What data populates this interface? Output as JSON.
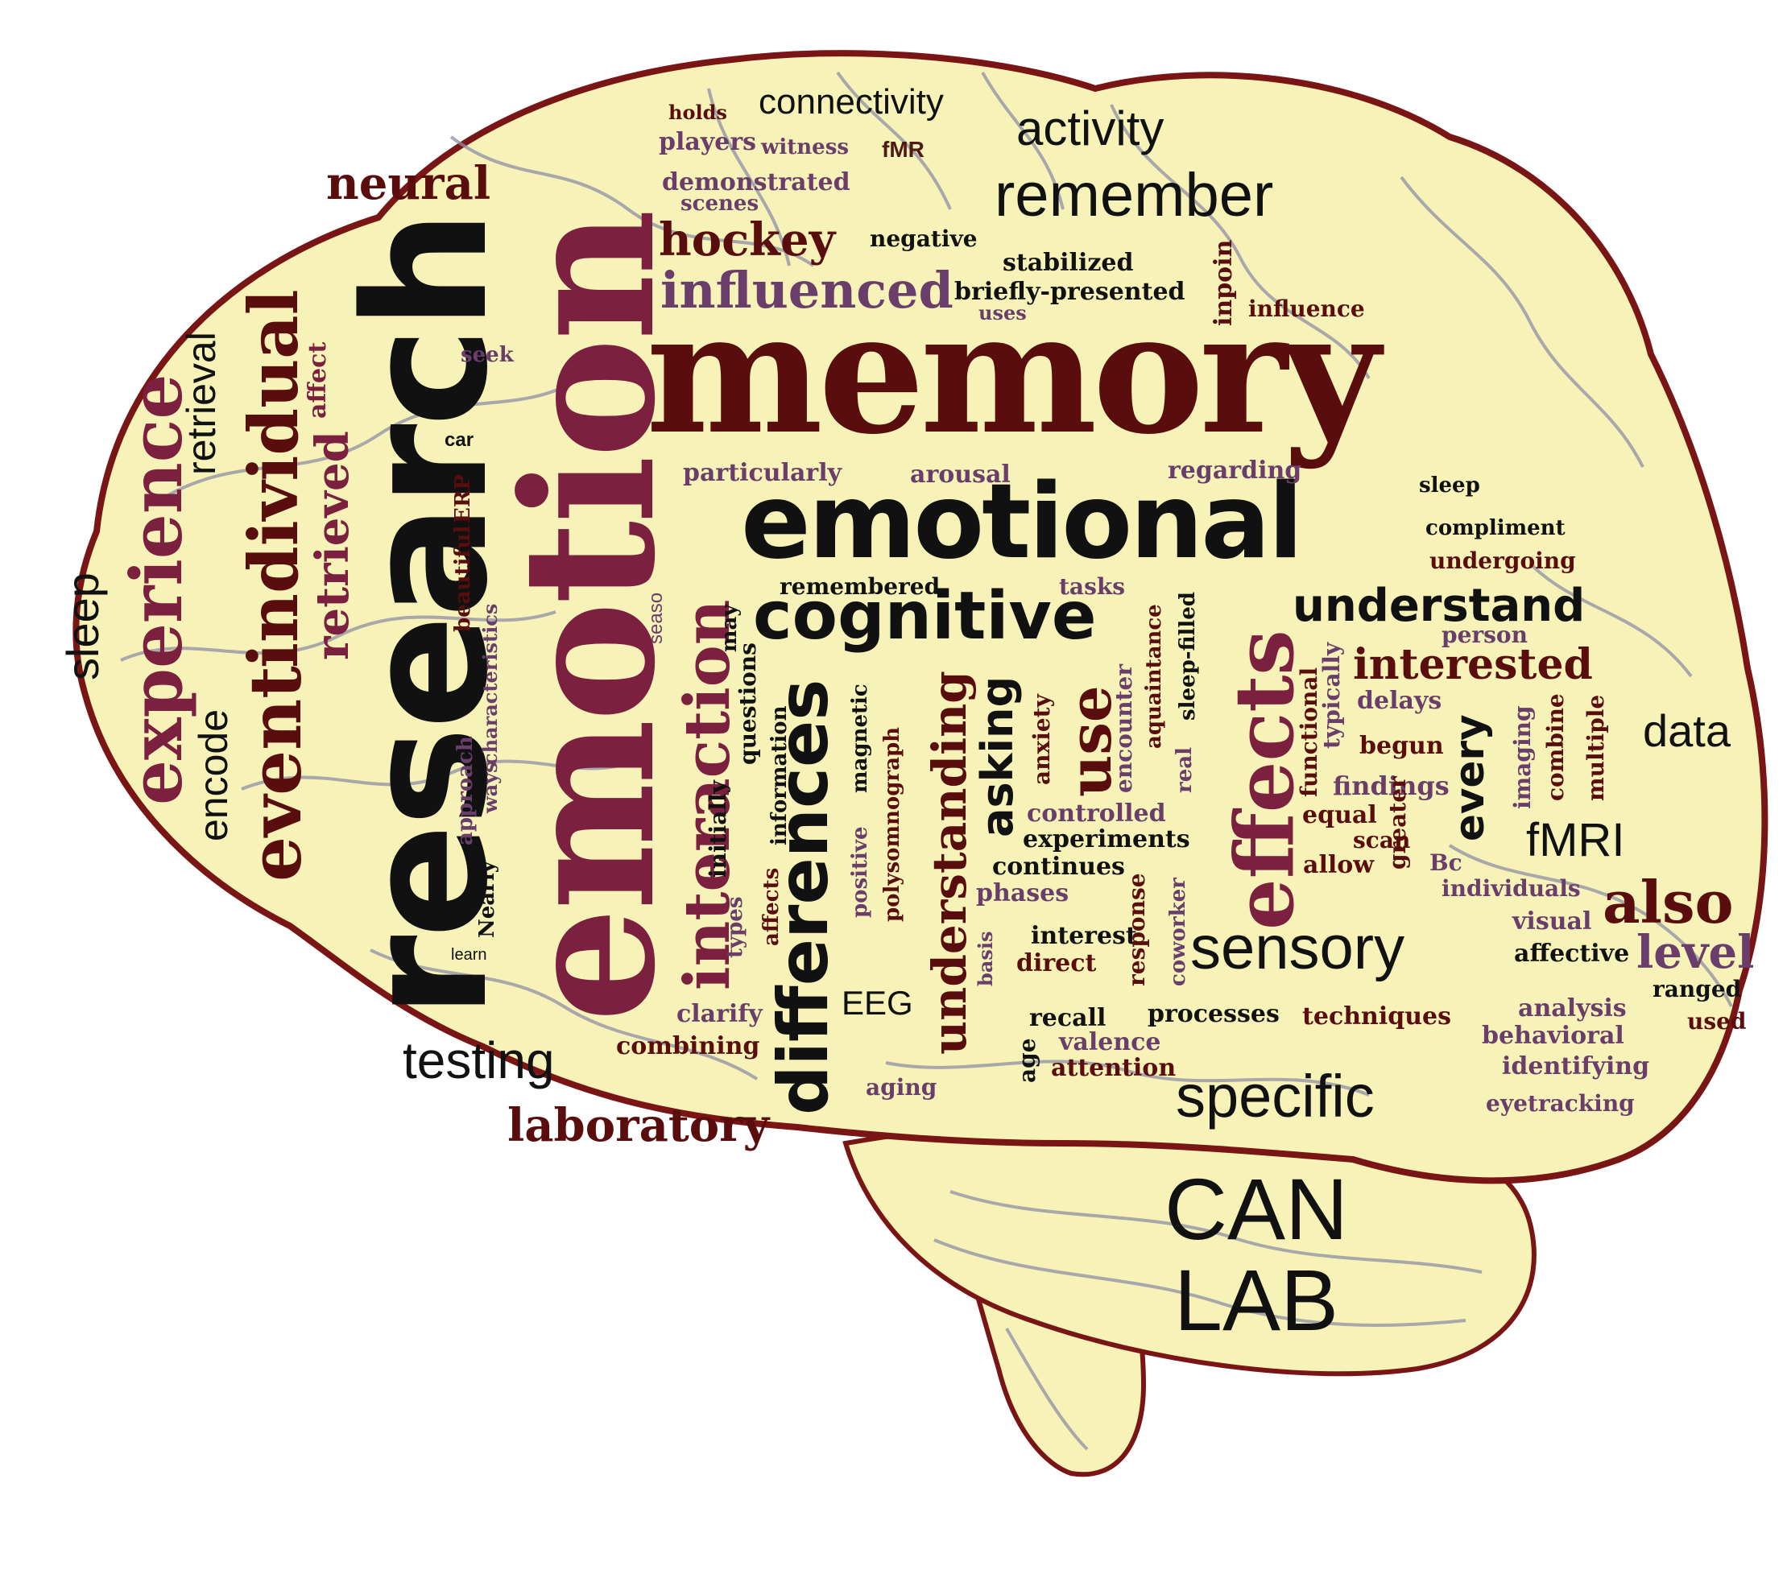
{
  "colors": {
    "background": "#ffffff",
    "brain_fill": "#f6f2b8",
    "brain_outline": "#7a1515",
    "vein_lines": "#8f8ea6",
    "text_dark_red": "#5a0d0d",
    "text_rose": "#7c2040",
    "text_plum": "#6a3e6a",
    "text_black": "#111111"
  },
  "logo": {
    "line1": "CAN",
    "line2": "LAB"
  },
  "words": {
    "memory": "memory",
    "emotion": "emotion",
    "research": "research",
    "emotional": "emotional",
    "cognitive": "cognitive",
    "differences": "differences",
    "effects": "effects",
    "interaction": "interaction",
    "understanding": "understanding",
    "experience": "experience",
    "event": "event",
    "individual": "individual",
    "remember": "remember",
    "activity": "activity",
    "connectivity": "connectivity",
    "neural": "neural",
    "hockey": "hockey",
    "influenced": "influenced",
    "understand": "understand",
    "interested": "interested",
    "sensory": "sensory",
    "specific": "specific",
    "laboratory": "laboratory",
    "testing": "testing",
    "data": "data",
    "fmri": "fMRI",
    "also": "also",
    "level": "level",
    "sleep": "sleep",
    "retrieval": "retrieval",
    "encode": "encode",
    "retrieved": "retrieved",
    "affect": "affect",
    "use": "use",
    "asking": "asking",
    "every": "every",
    "eeg": "EEG",
    "holds": "holds",
    "players": "players",
    "witness": "witness",
    "fmr": "fMR",
    "demonstrated": "demonstrated",
    "scenes": "scenes",
    "negative": "negative",
    "stabilized": "stabilized",
    "briefly_presented": "briefly-presented",
    "uses": "uses",
    "inpoin": "inpoin",
    "influence": "influence",
    "seek": "seek",
    "car": "car",
    "particularly": "particularly",
    "arousal": "arousal",
    "regarding": "regarding",
    "sleep_small": "sleep",
    "compliment": "compliment",
    "undergoing": "undergoing",
    "remembered": "remembered",
    "tasks": "tasks",
    "person": "person",
    "delays": "delays",
    "begun": "begun",
    "findings": "findings",
    "equal": "equal",
    "scan": "scan",
    "allow": "allow",
    "bc": "Bc",
    "individuals": "individuals",
    "visual": "visual",
    "affective": "affective",
    "ranged": "ranged",
    "analysis": "analysis",
    "used": "used",
    "behavioral": "behavioral",
    "identifying": "identifying",
    "eyetracking": "eyetracking",
    "controlled": "controlled",
    "experiments": "experiments",
    "continues": "continues",
    "phases": "phases",
    "interest": "interest",
    "direct": "direct",
    "recall": "recall",
    "processes": "processes",
    "techniques": "techniques",
    "valence": "valence",
    "attention": "attention",
    "age": "age",
    "aging": "aging",
    "clarify": "clarify",
    "combining": "combining",
    "learn": "learn",
    "nearly": "Nearly",
    "approach": "approach",
    "ways": "ways",
    "characteristics": "characteristics",
    "beautiful": "beautiful",
    "erp": "ERP",
    "seaso": "seaso",
    "may": "may",
    "initially": "initially",
    "questions": "questions",
    "information": "information",
    "affects": "affects",
    "types": "types",
    "positive": "positive",
    "magnetic": "magnetic",
    "polysomnograph": "polysomnograph",
    "anxiety": "anxiety",
    "basis": "basis",
    "encounter": "encounter",
    "aquaintance": "aquaintance",
    "real": "real",
    "sleep_filled": "sleep-filled",
    "response": "response",
    "coworker": "coworker",
    "functional": "functional",
    "typically": "typically",
    "greater": "greater",
    "imaging": "imaging",
    "combine": "combine",
    "multiple": "multiple"
  }
}
